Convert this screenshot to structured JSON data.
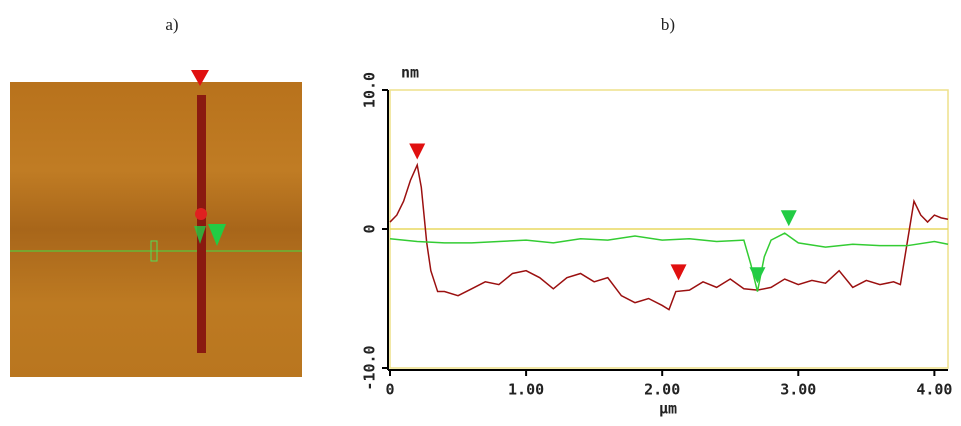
{
  "panel_labels": [
    "a)",
    "b)"
  ],
  "chart_data": {
    "type": "line",
    "y_unit": "nm",
    "x_unit": "µm",
    "xlim": [
      0,
      4.1
    ],
    "ylim": [
      -10,
      10
    ],
    "xticks": [
      0,
      {
        "value": 1,
        "label": "1.00"
      },
      {
        "value": 2,
        "label": "2.00"
      },
      {
        "value": 3,
        "label": "3.00"
      },
      {
        "value": 4,
        "label": "4.00"
      }
    ],
    "yticks": [
      {
        "value": -10,
        "label": "-10.0"
      },
      0,
      {
        "value": 10,
        "label": "10.0"
      }
    ],
    "series": [
      {
        "color": "#9b1010",
        "x": [
          0,
          0.05,
          0.1,
          0.15,
          0.2,
          0.23,
          0.27,
          0.3,
          0.35,
          0.4,
          0.5,
          0.6,
          0.7,
          0.8,
          0.9,
          1.0,
          1.1,
          1.2,
          1.3,
          1.4,
          1.5,
          1.6,
          1.7,
          1.8,
          1.9,
          2.0,
          2.05,
          2.1,
          2.2,
          2.3,
          2.4,
          2.5,
          2.6,
          2.7,
          2.8,
          2.9,
          3.0,
          3.1,
          3.2,
          3.3,
          3.4,
          3.5,
          3.6,
          3.7,
          3.75,
          3.8,
          3.85,
          3.9,
          3.95,
          4.0,
          4.05,
          4.1
        ],
        "values": [
          0.5,
          1,
          2,
          3.5,
          4.6,
          3,
          -1,
          -3,
          -4.5,
          -4.5,
          -4.8,
          -4.3,
          -3.8,
          -4,
          -3.2,
          -3,
          -3.5,
          -4.3,
          -3.5,
          -3.2,
          -3.8,
          -3.5,
          -4.8,
          -5.3,
          -5,
          -5.5,
          -5.8,
          -4.5,
          -4.4,
          -3.8,
          -4.2,
          -3.6,
          -4.3,
          -4.4,
          -4.2,
          -3.6,
          -4,
          -3.7,
          -3.9,
          -3,
          -4.2,
          -3.7,
          -4,
          -3.8,
          -4,
          -1,
          2,
          1,
          0.5,
          1,
          0.8,
          0.7
        ]
      },
      {
        "color": "#33cc33",
        "x": [
          0,
          0.2,
          0.4,
          0.6,
          0.8,
          1.0,
          1.2,
          1.4,
          1.6,
          1.8,
          2.0,
          2.2,
          2.4,
          2.6,
          2.65,
          2.7,
          2.75,
          2.8,
          2.9,
          3.0,
          3.2,
          3.4,
          3.6,
          3.8,
          4.0,
          4.1
        ],
        "values": [
          -0.7,
          -0.9,
          -1,
          -1,
          -0.9,
          -0.8,
          -1,
          -0.7,
          -0.8,
          -0.5,
          -0.8,
          -0.7,
          -0.9,
          -0.8,
          -2.5,
          -4.5,
          -2,
          -0.8,
          -0.3,
          -1,
          -1.3,
          -1.1,
          -1.2,
          -1.2,
          -0.9,
          -1.1
        ]
      }
    ],
    "cursors": [
      {
        "x": 0.2,
        "y": 5,
        "color": "#e01010"
      },
      {
        "x": 2.12,
        "y": -3.7,
        "color": "#e01010"
      },
      {
        "x": 2.7,
        "y": -3.9,
        "color": "#22cc44"
      },
      {
        "x": 2.93,
        "y": 0.2,
        "color": "#22cc44"
      }
    ]
  }
}
